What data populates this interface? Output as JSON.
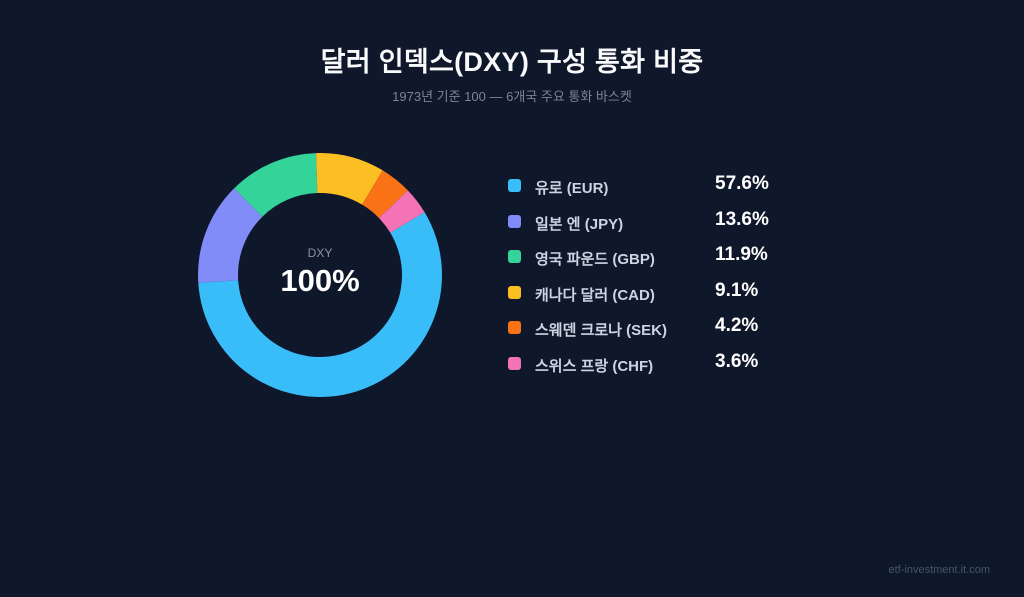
{
  "header": {
    "title": "달러 인덱스(DXY) 구성 통화 비중",
    "subtitle": "1973년 기준 100 — 6개국 주요 통화 바스켓"
  },
  "center": {
    "label": "DXY",
    "value": "100%"
  },
  "legend": [
    {
      "label": "유로 (EUR)",
      "value": "57.6%",
      "color": "#38bdf8"
    },
    {
      "label": "일본 엔 (JPY)",
      "value": "13.6%",
      "color": "#818cf8"
    },
    {
      "label": "영국 파운드 (GBP)",
      "value": "11.9%",
      "color": "#34d399"
    },
    {
      "label": "캐나다 달러 (CAD)",
      "value": "9.1%",
      "color": "#fbbf24"
    },
    {
      "label": "스웨덴 크로나 (SEK)",
      "value": "4.2%",
      "color": "#f97316"
    },
    {
      "label": "스위스 프랑 (CHF)",
      "value": "3.6%",
      "color": "#f472b6"
    }
  ],
  "watermark": "etf-investment.it.com",
  "chart_data": {
    "type": "pie",
    "variant": "donut",
    "title": "달러 인덱스(DXY) 구성 통화 비중",
    "subtitle": "1973년 기준 100 — 6개국 주요 통화 바스켓",
    "categories": [
      "유로 (EUR)",
      "일본 엔 (JPY)",
      "영국 파운드 (GBP)",
      "캐나다 달러 (CAD)",
      "스웨덴 크로나 (SEK)",
      "스위스 프랑 (CHF)"
    ],
    "values": [
      57.6,
      13.6,
      11.9,
      9.1,
      4.2,
      3.6
    ],
    "colors": [
      "#38bdf8",
      "#818cf8",
      "#34d399",
      "#fbbf24",
      "#f97316",
      "#f472b6"
    ],
    "center_text": {
      "label": "DXY",
      "value": "100%"
    },
    "start_angle_deg_clockwise_from_top": 59,
    "legend_position": "right"
  }
}
